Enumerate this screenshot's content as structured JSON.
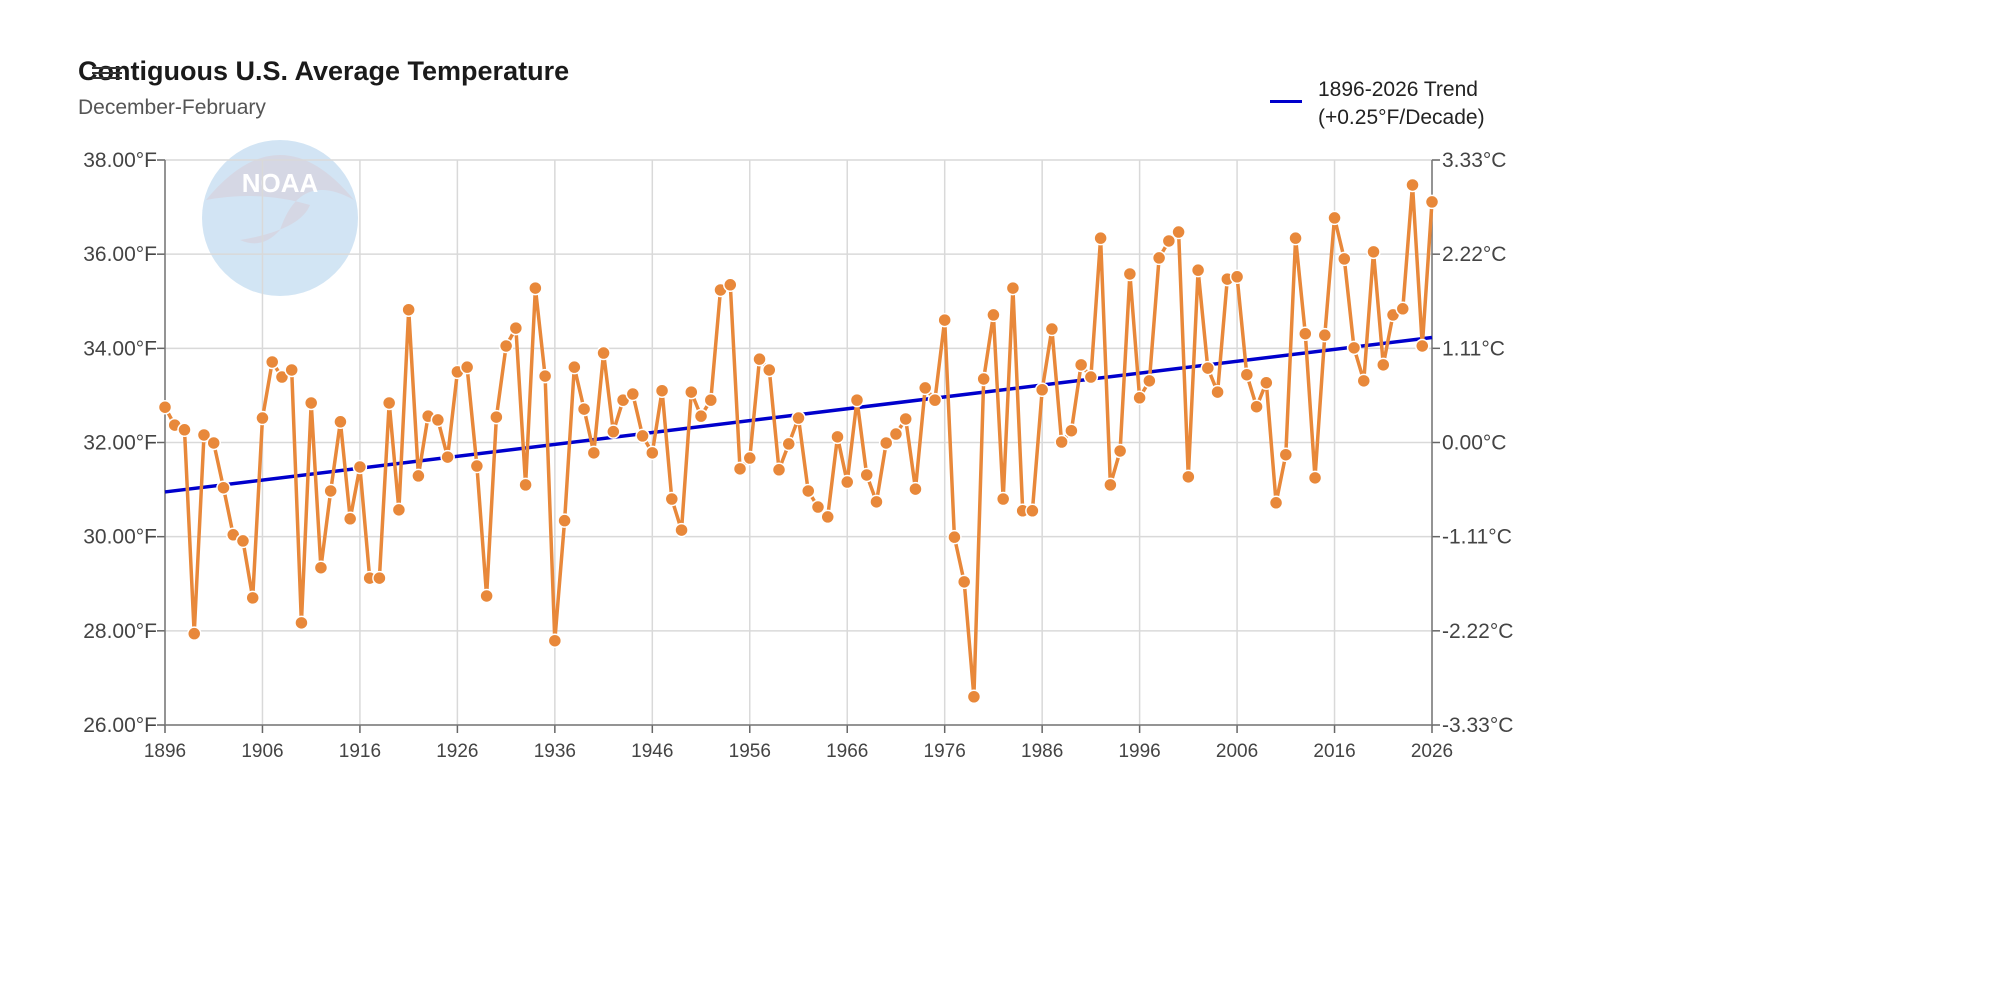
{
  "header": {
    "menu_icon": "hamburger-icon"
  },
  "logo": {
    "text": "NOAA"
  },
  "chart_data": {
    "type": "line",
    "title": "Contiguous U.S. Average Temperature",
    "subtitle": "December-February",
    "x_ticks": [
      "1896",
      "1906",
      "1916",
      "1926",
      "1936",
      "1946",
      "1956",
      "1966",
      "1976",
      "1986",
      "1996",
      "2006",
      "2016",
      "2026"
    ],
    "y_ticks_left": [
      "38.00°F",
      "36.00°F",
      "34.00°F",
      "32.00°F",
      "30.00°F",
      "28.00°F",
      "26.00°F"
    ],
    "y_ticks_right": [
      "3.33°C",
      "2.22°C",
      "1.11°C",
      "0.00°C",
      "-1.11°C",
      "-2.22°C",
      "-3.33°C"
    ],
    "xlim": [
      1896,
      2026
    ],
    "ylim": [
      26,
      38
    ],
    "grid": true,
    "legend_placement": "top-right",
    "colors": {
      "series": "#e8883a",
      "trend": "#0000cc"
    },
    "x_start": 1896,
    "series": [
      {
        "values": [
          32.75,
          32.37,
          32.27,
          27.94,
          32.16,
          31.99,
          31.04,
          30.04,
          29.91,
          28.7,
          32.52,
          33.71,
          33.39,
          33.54,
          28.17,
          32.84,
          29.34,
          30.97,
          32.44,
          30.38,
          31.48,
          29.12,
          29.12,
          32.84,
          30.57,
          34.82,
          31.29,
          32.56,
          32.48,
          31.69,
          33.5,
          33.6,
          31.5,
          28.74,
          32.54,
          34.05,
          34.43,
          31.1,
          35.28,
          33.41,
          27.79,
          30.34,
          33.6,
          32.71,
          31.78,
          33.9,
          32.23,
          32.9,
          33.03,
          32.14,
          31.78,
          33.1,
          30.8,
          30.14,
          33.07,
          32.56,
          32.9,
          35.24,
          35.35,
          31.44,
          31.67,
          33.77,
          33.54,
          31.42,
          31.97,
          32.52,
          30.97,
          30.63,
          30.42,
          32.12,
          31.16,
          32.9,
          31.31,
          30.74,
          31.99,
          32.18,
          32.5,
          31.01,
          33.16,
          32.9,
          34.6,
          29.99,
          29.04,
          26.6,
          33.35,
          34.71,
          30.8,
          35.28,
          30.55,
          30.55,
          33.12,
          34.41,
          32.01,
          32.25,
          33.65,
          33.39,
          36.34,
          31.1,
          31.82,
          35.58,
          32.95,
          33.31,
          35.92,
          36.28,
          36.47,
          31.27,
          35.66,
          33.58,
          33.07,
          35.47,
          35.52,
          33.44,
          32.76,
          33.27,
          30.72,
          31.74,
          36.34,
          34.31,
          31.25,
          34.28,
          36.77,
          35.9,
          34.01,
          33.31,
          36.05,
          33.65,
          34.71,
          34.84,
          37.47,
          34.05,
          37.11
        ]
      }
    ],
    "trend": {
      "name": "1896-2026 Trend",
      "rate": "(+0.25°F/Decade)",
      "start": [
        1896,
        30.95
      ],
      "end": [
        2026,
        34.23
      ]
    }
  }
}
